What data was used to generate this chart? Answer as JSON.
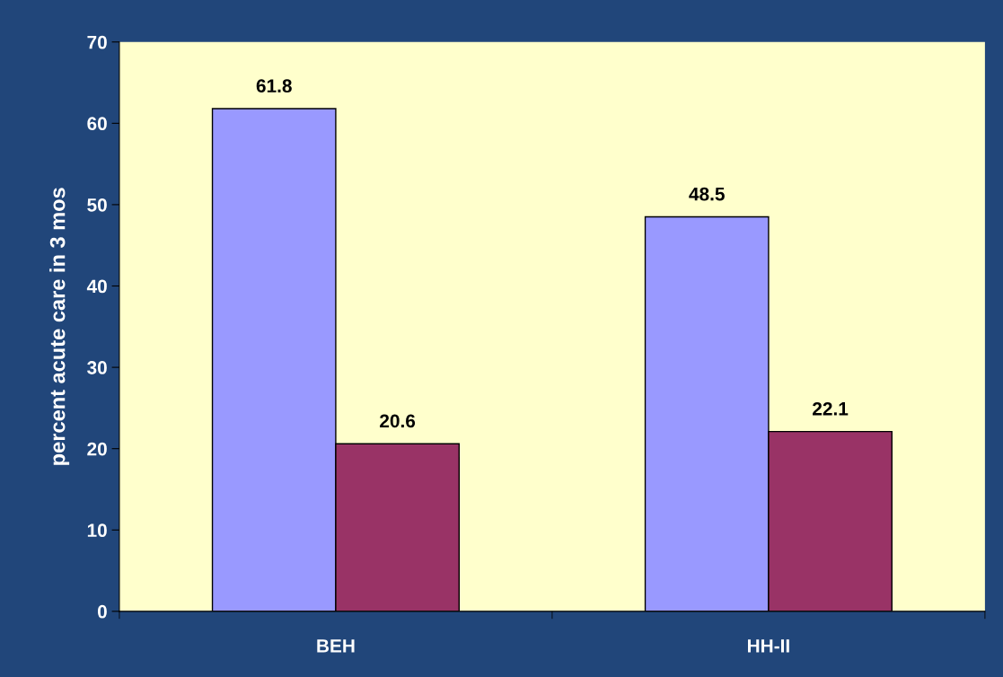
{
  "chart_data": {
    "type": "bar",
    "ylabel": "percent acute care in 3 mos",
    "categories": [
      "BEH",
      "HH-II"
    ],
    "series": [
      {
        "color": "#9999ff",
        "values": [
          61.8,
          48.5
        ]
      },
      {
        "color": "#993366",
        "values": [
          20.6,
          22.1
        ]
      }
    ],
    "ylim": [
      0,
      70
    ],
    "yticks": [
      0,
      10,
      20,
      30,
      40,
      50,
      60,
      70
    ],
    "data_labels": true,
    "grid": false
  }
}
